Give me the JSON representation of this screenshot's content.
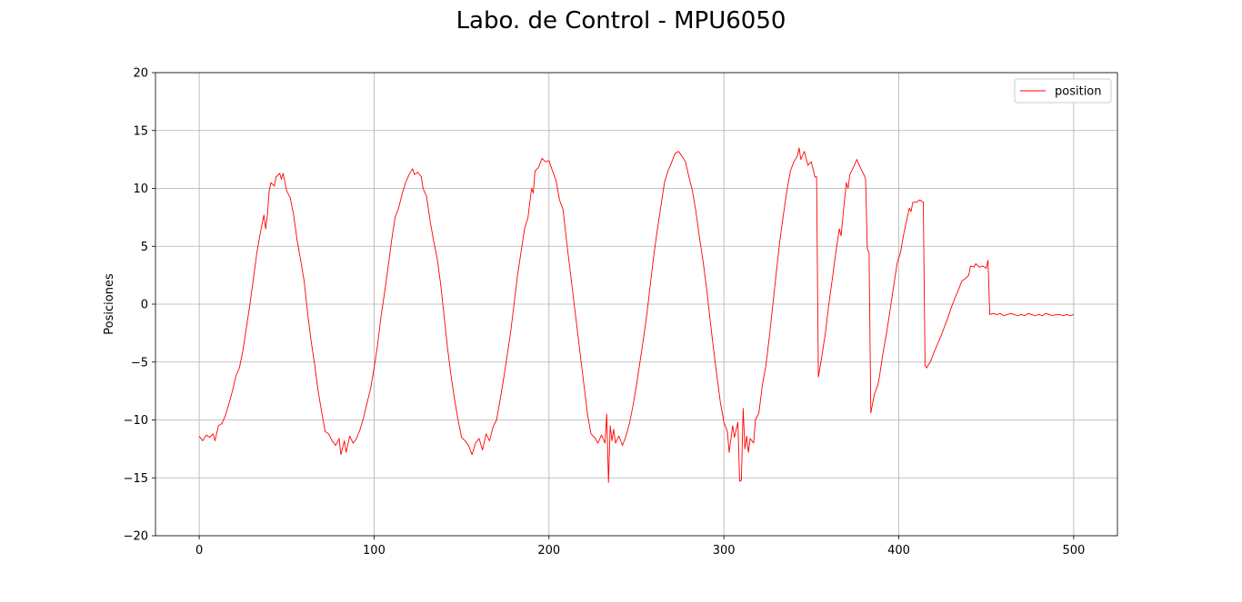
{
  "window": {
    "title": "Labo. de Control - MPU6050"
  },
  "chart_data": {
    "type": "line",
    "title": "Labo. de Control - MPU6050",
    "xlabel": "",
    "ylabel": "Posiciones",
    "xlim": [
      -25,
      525
    ],
    "ylim": [
      -20,
      20
    ],
    "xticks": [
      0,
      100,
      200,
      300,
      400,
      500
    ],
    "yticks": [
      -20,
      -15,
      -10,
      -5,
      0,
      5,
      10,
      15,
      20
    ],
    "xtick_labels": [
      "0",
      "100",
      "200",
      "300",
      "400",
      "500"
    ],
    "ytick_labels": [
      "−20",
      "−15",
      "−10",
      "−5",
      "0",
      "5",
      "10",
      "15",
      "20"
    ],
    "grid": true,
    "legend": {
      "placement": "top-right",
      "entries": [
        "position"
      ]
    },
    "series": [
      {
        "name": "position",
        "color": "#ff0000",
        "points": [
          [
            0,
            -11.4
          ],
          [
            2,
            -11.8
          ],
          [
            4,
            -11.3
          ],
          [
            6,
            -11.5
          ],
          [
            8,
            -11.2
          ],
          [
            9,
            -11.8
          ],
          [
            11,
            -10.5
          ],
          [
            13,
            -10.3
          ],
          [
            15,
            -9.6
          ],
          [
            17,
            -8.6
          ],
          [
            19,
            -7.5
          ],
          [
            21,
            -6.2
          ],
          [
            23,
            -5.5
          ],
          [
            25,
            -4.0
          ],
          [
            27,
            -2.0
          ],
          [
            29,
            0.0
          ],
          [
            31,
            2.2
          ],
          [
            33,
            4.5
          ],
          [
            35,
            6.2
          ],
          [
            37,
            7.7
          ],
          [
            38,
            6.5
          ],
          [
            39,
            7.7
          ],
          [
            40,
            9.8
          ],
          [
            41,
            10.5
          ],
          [
            43,
            10.2
          ],
          [
            44,
            11.0
          ],
          [
            46,
            11.3
          ],
          [
            47,
            10.8
          ],
          [
            48,
            11.3
          ],
          [
            50,
            9.8
          ],
          [
            52,
            9.2
          ],
          [
            54,
            7.7
          ],
          [
            56,
            5.5
          ],
          [
            58,
            3.8
          ],
          [
            60,
            2.0
          ],
          [
            62,
            -0.8
          ],
          [
            64,
            -3.2
          ],
          [
            66,
            -5.2
          ],
          [
            68,
            -7.5
          ],
          [
            70,
            -9.3
          ],
          [
            72,
            -11.0
          ],
          [
            74,
            -11.2
          ],
          [
            76,
            -11.8
          ],
          [
            78,
            -12.2
          ],
          [
            80,
            -11.6
          ],
          [
            81,
            -13.0
          ],
          [
            83,
            -11.8
          ],
          [
            84,
            -12.8
          ],
          [
            86,
            -11.4
          ],
          [
            88,
            -12.0
          ],
          [
            90,
            -11.6
          ],
          [
            92,
            -10.8
          ],
          [
            94,
            -9.8
          ],
          [
            96,
            -8.5
          ],
          [
            98,
            -7.3
          ],
          [
            100,
            -5.5
          ],
          [
            102,
            -3.5
          ],
          [
            104,
            -1.0
          ],
          [
            106,
            1.0
          ],
          [
            108,
            3.2
          ],
          [
            110,
            5.5
          ],
          [
            112,
            7.5
          ],
          [
            114,
            8.3
          ],
          [
            116,
            9.5
          ],
          [
            118,
            10.5
          ],
          [
            120,
            11.2
          ],
          [
            122,
            11.7
          ],
          [
            123,
            11.2
          ],
          [
            125,
            11.4
          ],
          [
            127,
            11.0
          ],
          [
            128,
            10.0
          ],
          [
            130,
            9.3
          ],
          [
            132,
            7.2
          ],
          [
            134,
            5.5
          ],
          [
            136,
            4.0
          ],
          [
            138,
            1.8
          ],
          [
            140,
            -1.0
          ],
          [
            142,
            -3.8
          ],
          [
            144,
            -6.2
          ],
          [
            146,
            -8.2
          ],
          [
            148,
            -10.0
          ],
          [
            150,
            -11.5
          ],
          [
            152,
            -11.8
          ],
          [
            154,
            -12.2
          ],
          [
            156,
            -13.0
          ],
          [
            158,
            -12.0
          ],
          [
            160,
            -11.6
          ],
          [
            162,
            -12.6
          ],
          [
            164,
            -11.2
          ],
          [
            166,
            -11.8
          ],
          [
            168,
            -10.6
          ],
          [
            170,
            -10.0
          ],
          [
            172,
            -8.3
          ],
          [
            174,
            -6.5
          ],
          [
            176,
            -4.5
          ],
          [
            178,
            -2.5
          ],
          [
            180,
            0.0
          ],
          [
            182,
            2.5
          ],
          [
            184,
            4.5
          ],
          [
            186,
            6.5
          ],
          [
            188,
            7.5
          ],
          [
            190,
            10.0
          ],
          [
            191,
            9.6
          ],
          [
            192,
            11.5
          ],
          [
            194,
            11.8
          ],
          [
            196,
            12.6
          ],
          [
            198,
            12.3
          ],
          [
            200,
            12.4
          ],
          [
            202,
            11.5
          ],
          [
            204,
            10.7
          ],
          [
            206,
            9.0
          ],
          [
            208,
            8.2
          ],
          [
            210,
            5.5
          ],
          [
            212,
            3.0
          ],
          [
            214,
            0.5
          ],
          [
            216,
            -2.0
          ],
          [
            218,
            -4.5
          ],
          [
            220,
            -7.0
          ],
          [
            222,
            -9.5
          ],
          [
            224,
            -11.2
          ],
          [
            226,
            -11.5
          ],
          [
            228,
            -12.0
          ],
          [
            230,
            -11.3
          ],
          [
            232,
            -12.0
          ],
          [
            233,
            -9.5
          ],
          [
            234,
            -15.4
          ],
          [
            235,
            -10.5
          ],
          [
            236,
            -11.8
          ],
          [
            237,
            -10.8
          ],
          [
            238,
            -12.0
          ],
          [
            240,
            -11.4
          ],
          [
            242,
            -12.2
          ],
          [
            244,
            -11.4
          ],
          [
            246,
            -10.3
          ],
          [
            248,
            -8.8
          ],
          [
            250,
            -7.0
          ],
          [
            252,
            -5.0
          ],
          [
            254,
            -3.0
          ],
          [
            256,
            -0.8
          ],
          [
            258,
            1.8
          ],
          [
            260,
            4.3
          ],
          [
            262,
            6.5
          ],
          [
            264,
            8.5
          ],
          [
            266,
            10.5
          ],
          [
            268,
            11.5
          ],
          [
            270,
            12.2
          ],
          [
            272,
            13.0
          ],
          [
            274,
            13.2
          ],
          [
            276,
            12.8
          ],
          [
            278,
            12.3
          ],
          [
            280,
            11.0
          ],
          [
            282,
            9.8
          ],
          [
            284,
            8.0
          ],
          [
            286,
            5.8
          ],
          [
            288,
            3.8
          ],
          [
            290,
            1.5
          ],
          [
            292,
            -1.2
          ],
          [
            294,
            -3.8
          ],
          [
            296,
            -6.2
          ],
          [
            298,
            -8.5
          ],
          [
            300,
            -10.2
          ],
          [
            302,
            -11.0
          ],
          [
            303,
            -12.8
          ],
          [
            305,
            -10.5
          ],
          [
            306,
            -11.5
          ],
          [
            308,
            -10.2
          ],
          [
            309,
            -15.3
          ],
          [
            310,
            -15.2
          ],
          [
            311,
            -9.0
          ],
          [
            312,
            -12.5
          ],
          [
            313,
            -11.4
          ],
          [
            314,
            -12.8
          ],
          [
            315,
            -11.6
          ],
          [
            317,
            -12.0
          ],
          [
            318,
            -10.0
          ],
          [
            320,
            -9.4
          ],
          [
            322,
            -7.0
          ],
          [
            324,
            -5.3
          ],
          [
            326,
            -2.8
          ],
          [
            328,
            0.0
          ],
          [
            330,
            2.8
          ],
          [
            332,
            5.5
          ],
          [
            334,
            7.7
          ],
          [
            336,
            9.8
          ],
          [
            338,
            11.5
          ],
          [
            340,
            12.3
          ],
          [
            342,
            12.8
          ],
          [
            343,
            13.5
          ],
          [
            344,
            12.5
          ],
          [
            346,
            13.2
          ],
          [
            348,
            12.0
          ],
          [
            350,
            12.3
          ],
          [
            352,
            11.0
          ],
          [
            353,
            11.0
          ],
          [
            354,
            -6.3
          ],
          [
            356,
            -4.5
          ],
          [
            358,
            -2.5
          ],
          [
            360,
            0.0
          ],
          [
            362,
            2.2
          ],
          [
            364,
            4.5
          ],
          [
            366,
            6.5
          ],
          [
            367,
            5.9
          ],
          [
            368,
            7.5
          ],
          [
            370,
            10.5
          ],
          [
            371,
            10.0
          ],
          [
            372,
            11.2
          ],
          [
            374,
            11.8
          ],
          [
            376,
            12.5
          ],
          [
            378,
            11.8
          ],
          [
            380,
            11.2
          ],
          [
            381,
            10.8
          ],
          [
            382,
            4.8
          ],
          [
            383,
            4.4
          ],
          [
            384,
            -9.4
          ],
          [
            385,
            -8.6
          ],
          [
            386,
            -7.8
          ],
          [
            388,
            -7.0
          ],
          [
            389,
            -6.2
          ],
          [
            391,
            -4.2
          ],
          [
            393,
            -2.5
          ],
          [
            395,
            -0.5
          ],
          [
            397,
            1.5
          ],
          [
            399,
            3.5
          ],
          [
            401,
            4.5
          ],
          [
            403,
            6.2
          ],
          [
            405,
            7.6
          ],
          [
            406,
            8.3
          ],
          [
            407,
            8.0
          ],
          [
            408,
            8.8
          ],
          [
            410,
            8.8
          ],
          [
            412,
            9.0
          ],
          [
            414,
            8.8
          ],
          [
            415,
            -5.3
          ],
          [
            416,
            -5.5
          ],
          [
            417,
            -5.2
          ],
          [
            418,
            -5.0
          ],
          [
            420,
            -4.2
          ],
          [
            422,
            -3.5
          ],
          [
            424,
            -2.8
          ],
          [
            426,
            -2.0
          ],
          [
            428,
            -1.2
          ],
          [
            430,
            -0.3
          ],
          [
            432,
            0.5
          ],
          [
            434,
            1.2
          ],
          [
            436,
            2.0
          ],
          [
            438,
            2.2
          ],
          [
            440,
            2.5
          ],
          [
            441,
            3.3
          ],
          [
            443,
            3.2
          ],
          [
            444,
            3.5
          ],
          [
            446,
            3.2
          ],
          [
            448,
            3.3
          ],
          [
            450,
            3.1
          ],
          [
            451,
            3.8
          ],
          [
            452,
            -0.9
          ],
          [
            454,
            -0.8
          ],
          [
            456,
            -0.9
          ],
          [
            458,
            -0.8
          ],
          [
            460,
            -1.0
          ],
          [
            462,
            -0.9
          ],
          [
            464,
            -0.8
          ],
          [
            466,
            -0.9
          ],
          [
            468,
            -1.0
          ],
          [
            470,
            -0.9
          ],
          [
            472,
            -1.0
          ],
          [
            474,
            -0.8
          ],
          [
            476,
            -0.9
          ],
          [
            478,
            -1.0
          ],
          [
            480,
            -0.9
          ],
          [
            482,
            -1.0
          ],
          [
            484,
            -0.8
          ],
          [
            486,
            -0.9
          ],
          [
            488,
            -1.0
          ],
          [
            490,
            -0.9
          ],
          [
            492,
            -0.9
          ],
          [
            494,
            -1.0
          ],
          [
            496,
            -0.9
          ],
          [
            498,
            -1.0
          ],
          [
            500,
            -0.9
          ]
        ]
      }
    ]
  }
}
